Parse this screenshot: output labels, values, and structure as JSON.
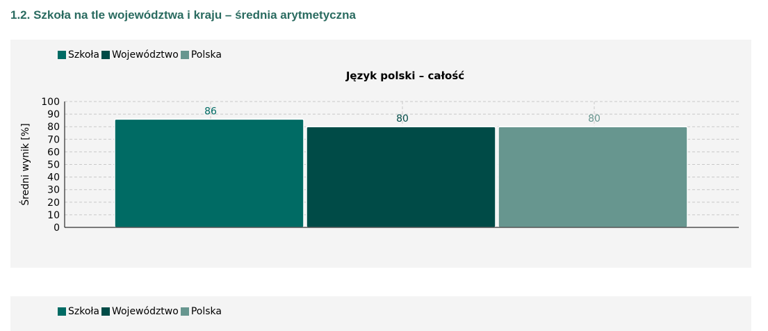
{
  "section": {
    "title": "1.2. Szkoła na tle województwa i kraju – średnia arytmetyczna"
  },
  "legend": [
    {
      "label": "Szkoła",
      "color": "#006b64"
    },
    {
      "label": "Województwo",
      "color": "#004b47"
    },
    {
      "label": "Polska",
      "color": "#67968f"
    }
  ],
  "colors": {
    "title": "#2a6b60",
    "panel_background": "#f4f4f4",
    "grid": "#c8c8c8"
  },
  "chart_data": [
    {
      "type": "bar",
      "title": "Język polski – całość",
      "ylabel": "Średni wynik [%]",
      "xlabel": "",
      "ylim": [
        0,
        100
      ],
      "yticks": [
        "0",
        "10",
        "20",
        "30",
        "40",
        "50",
        "60",
        "70",
        "80",
        "90",
        "100"
      ],
      "grid": true,
      "legend_position": "top-left",
      "categories": [
        "Szkoła",
        "Województwo",
        "Polska"
      ],
      "values": [
        86,
        80,
        80
      ],
      "value_labels": [
        "86",
        "80",
        "80"
      ],
      "colors": [
        "#006b64",
        "#004b47",
        "#67968f"
      ]
    }
  ]
}
